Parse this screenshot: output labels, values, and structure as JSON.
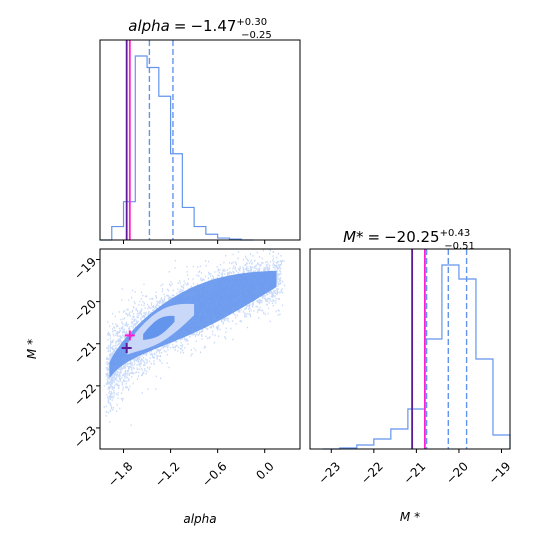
{
  "chart_data": [
    {
      "type": "histogram",
      "panel": "alpha-marginal",
      "title": {
        "name": "alpha",
        "median": "−1.47",
        "plus": "+0.30",
        "minus": "−0.25"
      },
      "xlim": [
        -2.1,
        0.45
      ],
      "bin_edges": [
        -2.1,
        -1.95,
        -1.8,
        -1.65,
        -1.5,
        -1.35,
        -1.2,
        -1.05,
        -0.9,
        -0.75,
        -0.6,
        -0.45,
        -0.3,
        -0.15
      ],
      "counts": [
        0.0,
        0.07,
        0.2,
        0.96,
        0.9,
        0.75,
        0.45,
        0.17,
        0.07,
        0.03,
        0.01,
        0.005,
        0.0
      ],
      "quantiles": [
        -1.72,
        -1.47,
        -1.17
      ],
      "truth_line": -1.76,
      "best_fit_line": -1.72
    },
    {
      "type": "histogram",
      "panel": "mstar-marginal",
      "title": {
        "name": "M*",
        "median": "−20.25",
        "plus": "+0.43",
        "minus": "−0.51"
      },
      "xlim": [
        -23.5,
        -18.8
      ],
      "xticks": [
        "−23",
        "−22",
        "−21",
        "−20",
        "−19"
      ],
      "xtick_values": [
        -23,
        -22,
        -21,
        -20,
        -19
      ],
      "xlabel": "M *",
      "bin_edges": [
        -23.2,
        -22.8,
        -22.4,
        -22.0,
        -21.6,
        -21.2,
        -20.8,
        -20.4,
        -20.0,
        -19.6,
        -19.2,
        -18.8
      ],
      "counts": [
        0.0,
        0.005,
        0.02,
        0.05,
        0.1,
        0.2,
        0.55,
        0.92,
        0.85,
        0.45,
        0.07
      ],
      "quantiles": [
        -20.76,
        -20.25,
        -19.82
      ],
      "truth_line": -21.1,
      "best_fit_line": -20.8
    },
    {
      "type": "scatter",
      "panel": "joint",
      "xlim": [
        -2.1,
        0.45
      ],
      "ylim": [
        -23.5,
        -18.75
      ],
      "xticks": [
        "−1.8",
        "−1.2",
        "−0.6",
        "0.0"
      ],
      "xtick_values": [
        -1.8,
        -1.2,
        -0.6,
        0.0
      ],
      "yticks": [
        "−19",
        "−20",
        "−21",
        "−22",
        "−23"
      ],
      "ytick_values": [
        -19,
        -20,
        -21,
        -22,
        -23
      ],
      "xlabel": "alpha",
      "ylabel": "M *",
      "truth_point": [
        -1.76,
        -21.1
      ],
      "best_fit_point": [
        -1.72,
        -20.8
      ]
    }
  ],
  "colors": {
    "samples": "#6495ed",
    "contour_fill": "#c9d8f8",
    "truth": "#5c1a99",
    "best_fit": "#ff1fd0",
    "quantile": "#6495ed"
  }
}
